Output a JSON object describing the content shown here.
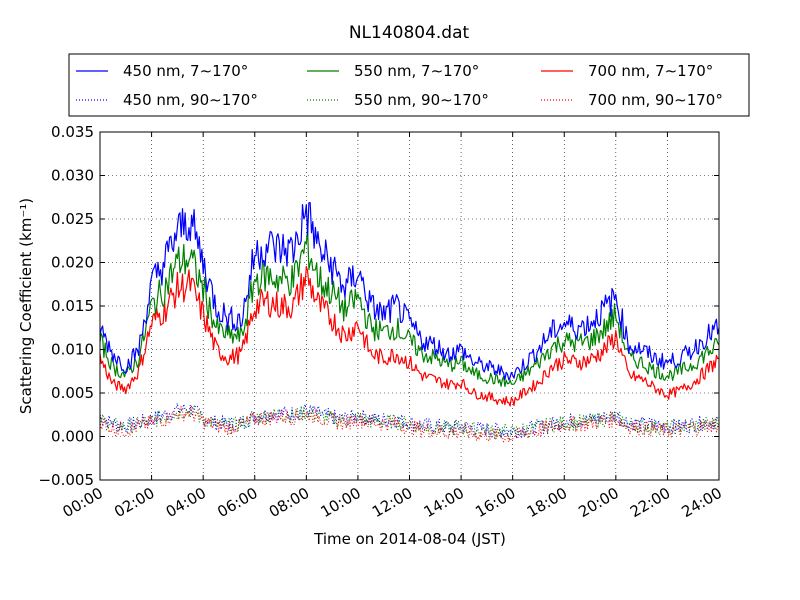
{
  "chart_data": {
    "type": "line",
    "title": "NL140804.dat",
    "xlabel": "Time on 2014-08-04 (JST)",
    "ylabel": "Scattering Coefficient (km⁻¹)",
    "xlim": [
      0,
      24
    ],
    "ylim": [
      -0.005,
      0.035
    ],
    "x_ticks": [
      "00:00",
      "02:00",
      "04:00",
      "06:00",
      "08:00",
      "10:00",
      "12:00",
      "14:00",
      "16:00",
      "18:00",
      "20:00",
      "22:00",
      "24:00"
    ],
    "y_ticks": [
      "−0.005",
      "0.000",
      "0.005",
      "0.010",
      "0.015",
      "0.020",
      "0.025",
      "0.030",
      "0.035"
    ],
    "grid": true,
    "legend_position": "top",
    "x_hours": [
      0,
      0.5,
      1,
      1.5,
      2,
      2.5,
      3,
      3.5,
      4,
      4.5,
      5,
      5.5,
      6,
      6.5,
      7,
      7.5,
      8,
      8.5,
      9,
      9.5,
      10,
      10.5,
      11,
      11.5,
      12,
      12.5,
      13,
      13.5,
      14,
      14.5,
      15,
      15.5,
      16,
      16.5,
      17,
      17.5,
      18,
      18.5,
      19,
      19.5,
      20,
      20.5,
      21,
      21.5,
      22,
      22.5,
      23,
      23.5,
      24
    ],
    "series": [
      {
        "name": "450 nm, 7∼170°",
        "color": "#0000ff",
        "style": "solid",
        "values": [
          0.0125,
          0.0095,
          0.008,
          0.01,
          0.0175,
          0.02,
          0.0235,
          0.025,
          0.02,
          0.015,
          0.0135,
          0.0135,
          0.021,
          0.022,
          0.0215,
          0.0215,
          0.026,
          0.0215,
          0.0195,
          0.017,
          0.019,
          0.015,
          0.014,
          0.015,
          0.013,
          0.011,
          0.0105,
          0.0095,
          0.01,
          0.0085,
          0.008,
          0.0075,
          0.007,
          0.0085,
          0.01,
          0.012,
          0.013,
          0.0125,
          0.013,
          0.0145,
          0.016,
          0.0105,
          0.01,
          0.009,
          0.0085,
          0.009,
          0.01,
          0.0115,
          0.0125
        ]
      },
      {
        "name": "550 nm, 7∼170°",
        "color": "#008000",
        "style": "solid",
        "values": [
          0.011,
          0.008,
          0.007,
          0.009,
          0.015,
          0.017,
          0.02,
          0.0205,
          0.017,
          0.0125,
          0.0115,
          0.0115,
          0.018,
          0.0185,
          0.018,
          0.018,
          0.022,
          0.018,
          0.0165,
          0.0145,
          0.016,
          0.0125,
          0.012,
          0.0125,
          0.011,
          0.0095,
          0.009,
          0.0082,
          0.0085,
          0.0072,
          0.0068,
          0.0064,
          0.006,
          0.0072,
          0.0085,
          0.0102,
          0.011,
          0.0107,
          0.011,
          0.0122,
          0.014,
          0.009,
          0.0085,
          0.0076,
          0.007,
          0.0075,
          0.0083,
          0.0096,
          0.0105
        ]
      },
      {
        "name": "700 nm, 7∼170°",
        "color": "#ff0000",
        "style": "solid",
        "values": [
          0.009,
          0.006,
          0.0055,
          0.0075,
          0.013,
          0.0145,
          0.017,
          0.0175,
          0.014,
          0.01,
          0.009,
          0.0095,
          0.015,
          0.0155,
          0.015,
          0.015,
          0.0185,
          0.015,
          0.0135,
          0.0115,
          0.013,
          0.0095,
          0.009,
          0.0095,
          0.0085,
          0.007,
          0.0065,
          0.006,
          0.0062,
          0.005,
          0.0046,
          0.0042,
          0.004,
          0.0052,
          0.0062,
          0.008,
          0.0088,
          0.0085,
          0.0088,
          0.0098,
          0.0115,
          0.007,
          0.0066,
          0.0056,
          0.0048,
          0.0053,
          0.0062,
          0.0075,
          0.009
        ]
      },
      {
        "name": "450 nm, 90∼170°",
        "color": "#0000ff",
        "style": "dotted",
        "values": [
          0.0022,
          0.0015,
          0.0012,
          0.0015,
          0.002,
          0.0025,
          0.003,
          0.0032,
          0.0022,
          0.0016,
          0.0014,
          0.0016,
          0.0024,
          0.0026,
          0.0027,
          0.0026,
          0.003,
          0.0026,
          0.0022,
          0.002,
          0.0024,
          0.002,
          0.0019,
          0.0019,
          0.0016,
          0.0013,
          0.0012,
          0.001,
          0.0012,
          0.0009,
          0.0008,
          0.0007,
          0.0006,
          0.0009,
          0.0011,
          0.0014,
          0.0018,
          0.0018,
          0.0019,
          0.0022,
          0.0024,
          0.0016,
          0.0014,
          0.0013,
          0.0012,
          0.0012,
          0.0014,
          0.0016,
          0.0018
        ]
      },
      {
        "name": "550 nm, 90∼170°",
        "color": "#008000",
        "style": "dotted",
        "values": [
          0.002,
          0.0013,
          0.0011,
          0.0014,
          0.0018,
          0.0023,
          0.0028,
          0.003,
          0.002,
          0.0014,
          0.0012,
          0.0015,
          0.0022,
          0.0024,
          0.0025,
          0.0024,
          0.0028,
          0.0024,
          0.002,
          0.0018,
          0.0022,
          0.0018,
          0.0017,
          0.0017,
          0.0014,
          0.0011,
          0.001,
          0.0009,
          0.001,
          0.0008,
          0.0007,
          0.0006,
          0.0005,
          0.0008,
          0.001,
          0.0013,
          0.0016,
          0.0016,
          0.0017,
          0.002,
          0.0022,
          0.0014,
          0.0012,
          0.0011,
          0.001,
          0.0011,
          0.0012,
          0.0014,
          0.0016
        ]
      },
      {
        "name": "700 nm, 90∼170°",
        "color": "#ff0000",
        "style": "dotted",
        "values": [
          0.0018,
          0.001,
          0.0008,
          0.0012,
          0.0016,
          0.002,
          0.0026,
          0.0028,
          0.0018,
          0.0012,
          0.001,
          0.0013,
          0.002,
          0.0022,
          0.0023,
          0.0022,
          0.0026,
          0.0022,
          0.0018,
          0.0016,
          0.002,
          0.0016,
          0.0015,
          0.0015,
          0.0011,
          0.0008,
          0.0007,
          0.0005,
          0.0006,
          0.0003,
          0.0002,
          0.0001,
          0.0,
          0.0004,
          0.0007,
          0.0011,
          0.0014,
          0.0014,
          0.0015,
          0.0018,
          0.002,
          0.0012,
          0.001,
          0.0008,
          0.0007,
          0.0008,
          0.001,
          0.0012,
          0.0014
        ]
      }
    ]
  }
}
